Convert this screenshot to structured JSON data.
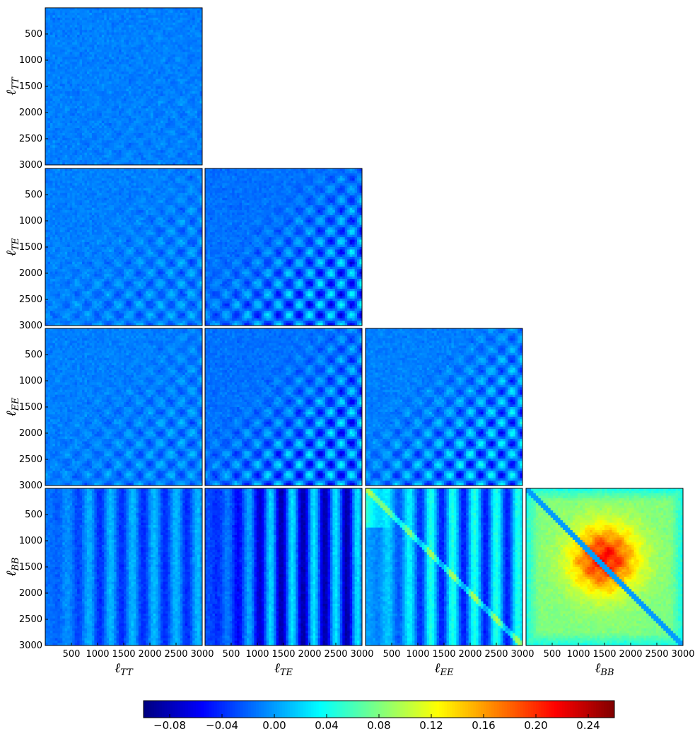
{
  "chart_data": {
    "type": "heatmap",
    "layout": "lower-triangular grid of correlation matrices",
    "row_labels": [
      {
        "main": "ℓ",
        "sub": "TT"
      },
      {
        "main": "ℓ",
        "sub": "TE"
      },
      {
        "main": "ℓ",
        "sub": "EE"
      },
      {
        "main": "ℓ",
        "sub": "BB"
      }
    ],
    "col_labels": [
      {
        "main": "ℓ",
        "sub": "TT"
      },
      {
        "main": "ℓ",
        "sub": "TE"
      },
      {
        "main": "ℓ",
        "sub": "EE"
      },
      {
        "main": "ℓ",
        "sub": "BB"
      }
    ],
    "axis_range": [
      0,
      3000
    ],
    "y_ticks": [
      "500",
      "1000",
      "1500",
      "2000",
      "2500",
      "3000"
    ],
    "x_ticks": [
      "500",
      "1000",
      "1500",
      "2000",
      "2500",
      "3000"
    ],
    "colormap": "jet",
    "colorbar": {
      "range": [
        -0.1,
        0.26
      ],
      "ticks": [
        "−0.08",
        "−0.04",
        "0.00",
        "0.04",
        "0.08",
        "0.12",
        "0.16",
        "0.20",
        "0.24"
      ],
      "tick_values": [
        -0.08,
        -0.04,
        0.0,
        0.04,
        0.08,
        0.12,
        0.16,
        0.2,
        0.24
      ],
      "orientation": "horizontal"
    },
    "panels": [
      {
        "row": 0,
        "col": 0,
        "pattern": "noise",
        "base": -0.01
      },
      {
        "row": 1,
        "col": 0,
        "pattern": "checker-weak",
        "base": -0.01
      },
      {
        "row": 1,
        "col": 1,
        "pattern": "checker-strong",
        "base": -0.015
      },
      {
        "row": 2,
        "col": 0,
        "pattern": "checker-weak",
        "base": -0.01
      },
      {
        "row": 2,
        "col": 1,
        "pattern": "checker-strong",
        "base": -0.015
      },
      {
        "row": 2,
        "col": 2,
        "pattern": "checker-strong",
        "base": -0.01
      },
      {
        "row": 3,
        "col": 0,
        "pattern": "stripes",
        "base": -0.015
      },
      {
        "row": 3,
        "col": 1,
        "pattern": "stripes-strong",
        "base": -0.02
      },
      {
        "row": 3,
        "col": 2,
        "pattern": "stripes-diagonal",
        "base": 0.0
      },
      {
        "row": 3,
        "col": 3,
        "pattern": "blob",
        "base": 0.08
      }
    ]
  }
}
